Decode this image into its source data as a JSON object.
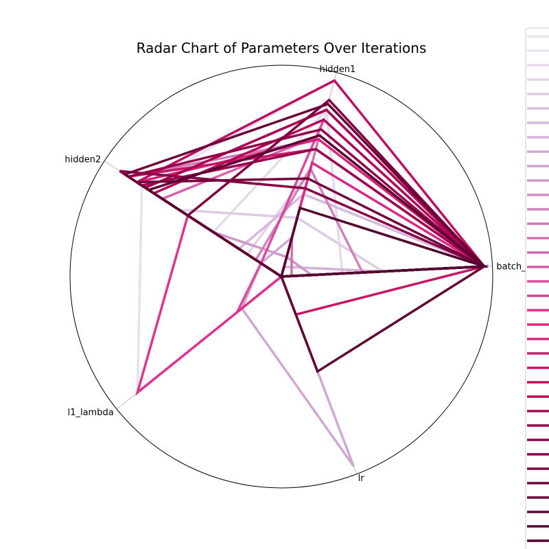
{
  "chart_data": {
    "type": "radar",
    "title": "Radar Chart of Parameters Over Iterations",
    "axes": [
      "batch_size",
      "hidden1",
      "hidden2",
      "l1_lambda",
      "lr"
    ],
    "rlim": [
      0,
      1
    ],
    "grid": false,
    "legend": {
      "placement": "right",
      "entries_visible": 36,
      "labels_visible": false
    },
    "colormap": "PuRd",
    "series_colors": [
      "#ece6f1",
      "#e9e0ee",
      "#e5dbeb",
      "#e1d2e7",
      "#dccbe3",
      "#d8c1df",
      "#d5b9da",
      "#d3b1d6",
      "#d0a9d2",
      "#cea1cd",
      "#cd97c8",
      "#cd8dc3",
      "#ce83bd",
      "#d079b7",
      "#d26eb0",
      "#d562aa",
      "#d957a3",
      "#dc4a9b",
      "#dd3f94",
      "#de338c",
      "#db2a83",
      "#d62479",
      "#ce1c70",
      "#c71666",
      "#bc0f5f",
      "#b20a59",
      "#a80653",
      "#9c034e",
      "#920049",
      "#880045",
      "#7e0040",
      "#74003b",
      "#6a0037",
      "#610033",
      "#5a0030",
      "#52002d"
    ],
    "series": [
      {
        "values": [
          0.0,
          0.0,
          0.0,
          0.0,
          0.0
        ]
      },
      {
        "values": [
          0.0,
          1.0,
          0.82,
          0.91,
          0.0
        ]
      },
      {
        "values": [
          0.3,
          0.85,
          0.4,
          0.0,
          0.0
        ]
      },
      {
        "values": [
          0.0,
          0.55,
          0.2,
          0.0,
          0.0
        ]
      },
      {
        "values": [
          0.5,
          0.3,
          0.6,
          0.0,
          0.0
        ]
      },
      {
        "values": [
          0.0,
          0.48,
          0.0,
          0.0,
          0.0
        ]
      },
      {
        "values": [
          1.0,
          0.42,
          0.25,
          0.0,
          0.0
        ]
      },
      {
        "values": [
          0.5,
          0.05,
          0.0,
          0.0,
          0.0
        ]
      },
      {
        "values": [
          0.0,
          0.2,
          0.12,
          0.25,
          1.0
        ]
      },
      {
        "values": [
          0.0,
          0.35,
          0.0,
          0.05,
          0.0
        ]
      },
      {
        "values": [
          0.15,
          0.1,
          0.4,
          0.0,
          0.0
        ]
      },
      {
        "values": [
          0.0,
          0.0,
          0.1,
          0.0,
          0.0
        ]
      },
      {
        "values": [
          0.4,
          0.55,
          0.15,
          0.0,
          0.0
        ]
      },
      {
        "values": [
          0.0,
          0.7,
          0.9,
          0.0,
          0.0
        ]
      },
      {
        "values": [
          0.05,
          0.2,
          0.0,
          0.0,
          0.0
        ]
      },
      {
        "values": [
          1.0,
          0.72,
          0.7,
          0.0,
          0.0
        ]
      },
      {
        "values": [
          0.0,
          0.5,
          0.0,
          0.0,
          0.0
        ]
      },
      {
        "values": [
          1.0,
          0.8,
          0.12,
          0.28,
          0.0
        ]
      },
      {
        "values": [
          0.0,
          0.0,
          0.55,
          0.0,
          0.0
        ]
      },
      {
        "values": [
          0.0,
          0.0,
          0.55,
          0.91,
          0.0
        ]
      },
      {
        "values": [
          1.0,
          0.58,
          0.0,
          0.0,
          0.0
        ]
      },
      {
        "values": [
          1.0,
          0.7,
          0.85,
          0.0,
          0.0
        ]
      },
      {
        "values": [
          1.0,
          0.85,
          0.8,
          0.0,
          0.0
        ]
      },
      {
        "values": [
          1.0,
          0.65,
          0.9,
          0.0,
          0.2
        ]
      },
      {
        "values": [
          1.0,
          1.0,
          0.85,
          0.0,
          0.0
        ]
      },
      {
        "values": [
          1.0,
          0.8,
          0.75,
          0.0,
          0.0
        ]
      },
      {
        "values": [
          1.0,
          0.85,
          0.8,
          0.0,
          0.0
        ]
      },
      {
        "values": [
          1.0,
          0.65,
          0.82,
          0.0,
          0.0
        ]
      },
      {
        "values": [
          1.0,
          0.75,
          0.9,
          0.0,
          0.0
        ]
      },
      {
        "values": [
          1.0,
          0.45,
          0.95,
          0.0,
          0.0
        ]
      },
      {
        "values": [
          1.0,
          0.9,
          0.55,
          0.0,
          0.0
        ]
      },
      {
        "values": [
          1.0,
          0.5,
          0.85,
          0.0,
          0.0
        ]
      },
      {
        "values": [
          1.0,
          0.88,
          0.92,
          0.0,
          0.0
        ]
      },
      {
        "values": [
          1.0,
          0.0,
          0.0,
          0.0,
          0.5
        ]
      },
      {
        "values": [
          1.0,
          0.72,
          0.78,
          0.0,
          0.0
        ]
      },
      {
        "values": [
          1.0,
          0.35,
          0.0,
          0.0,
          0.0
        ]
      }
    ]
  }
}
